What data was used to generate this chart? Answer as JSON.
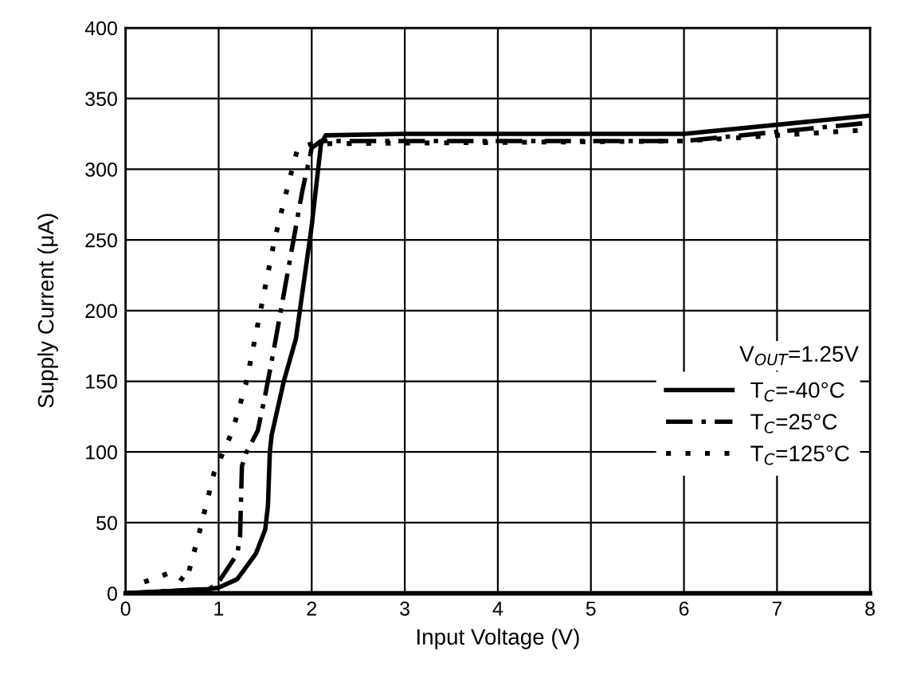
{
  "chart_data": {
    "type": "line",
    "xlabel": "Input Voltage (V)",
    "ylabel": "Supply Current (μA)",
    "xlim": [
      0,
      8
    ],
    "ylim": [
      0,
      400
    ],
    "xticks": [
      0,
      1,
      2,
      3,
      4,
      5,
      6,
      7,
      8
    ],
    "yticks": [
      0,
      50,
      100,
      150,
      200,
      250,
      300,
      350,
      400
    ],
    "grid": true,
    "legend": "right",
    "annotations": [
      "V$_{OUT}$=1.25V"
    ],
    "series": [
      {
        "name": "T$_{C}$=-40°C",
        "color": "#000000",
        "line_style": "solid",
        "x": [
          0,
          0.9,
          1,
          1.2,
          1.4,
          1.5,
          1.53,
          1.55,
          1.57,
          1.7,
          1.83,
          2.0,
          2.1,
          2.15,
          3,
          6,
          8
        ],
        "values": [
          0,
          3,
          4,
          10,
          28,
          45,
          62,
          100,
          112,
          150,
          180,
          260,
          318,
          324,
          325,
          325,
          338
        ]
      },
      {
        "name": "T$_{C}$=25°C",
        "color": "#000000",
        "line_style": "dashdot",
        "x": [
          0,
          0.9,
          1.0,
          1.1,
          1.2,
          1.23,
          1.25,
          1.3,
          1.42,
          1.5,
          1.6,
          1.75,
          1.9,
          2.0,
          2.1,
          6,
          8
        ],
        "values": [
          0,
          3,
          8,
          18,
          28,
          40,
          90,
          100,
          115,
          140,
          175,
          230,
          285,
          315,
          320,
          320,
          333
        ]
      },
      {
        "name": "T$_{C}$=125°C",
        "color": "#000000",
        "line_style": "dotted",
        "x": [
          0.2,
          0.5,
          0.65,
          0.8,
          0.95,
          1.15,
          1.3,
          1.45,
          1.6,
          1.75,
          1.85,
          2.0,
          6,
          8
        ],
        "values": [
          8,
          15,
          8,
          45,
          85,
          115,
          150,
          200,
          250,
          290,
          315,
          318,
          320,
          328
        ]
      }
    ]
  }
}
